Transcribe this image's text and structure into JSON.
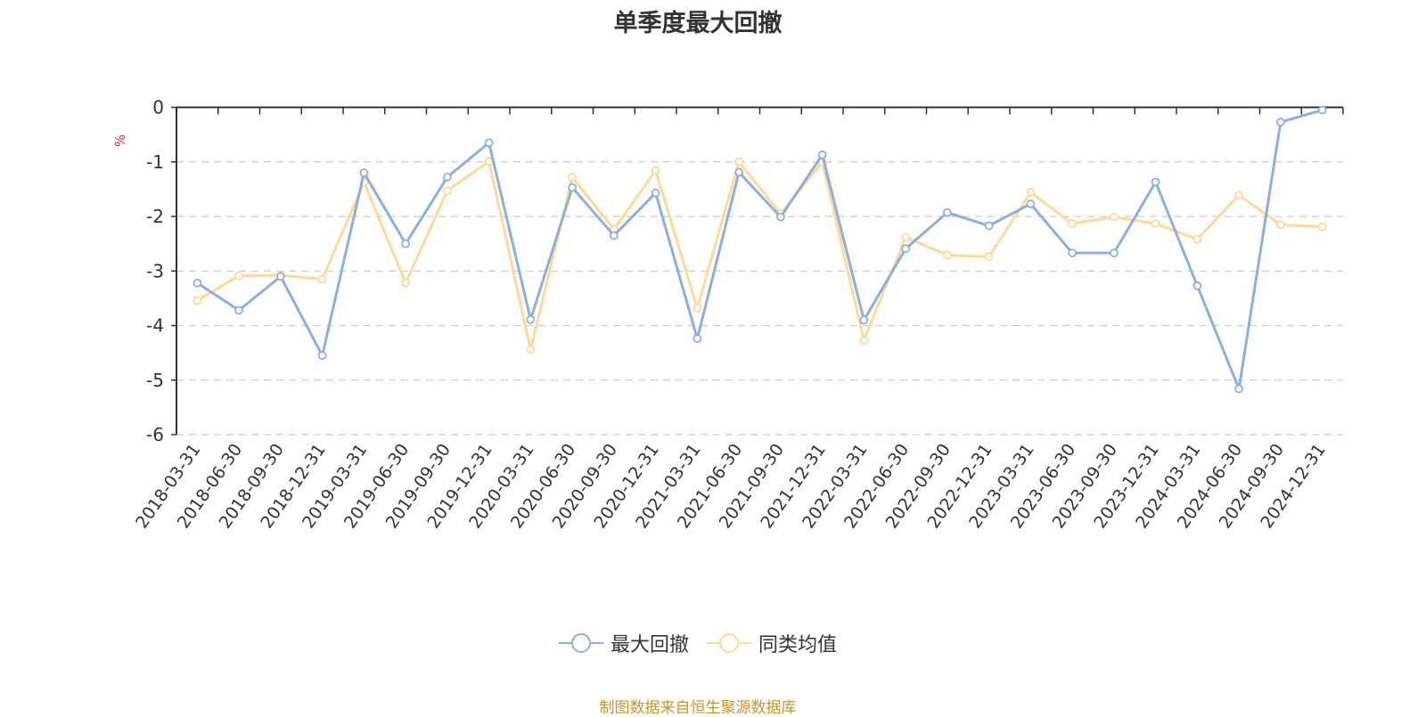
{
  "title": "单季度最大回撤",
  "y_unit": "%",
  "footer": "制图数据来自恒生聚源数据库",
  "colors": {
    "series1": "#8eaedd",
    "series2": "#fdd99a",
    "unit": "#e8232a",
    "grid": "#cccccc",
    "axis": "#333333",
    "footer": "#c8952c"
  },
  "legend": [
    {
      "label": "最大回撤",
      "color": "#8eaedd"
    },
    {
      "label": "同类均值",
      "color": "#fdd99a"
    }
  ],
  "chart_data": {
    "type": "line",
    "title": "单季度最大回撤",
    "xlabel": "",
    "ylabel": "%",
    "ylim": [
      -6,
      0
    ],
    "yticks": [
      0,
      -1,
      -2,
      -3,
      -4,
      -5,
      -6
    ],
    "grid": true,
    "legend_position": "bottom",
    "categories": [
      "2018-03-31",
      "2018-06-30",
      "2018-09-30",
      "2018-12-31",
      "2019-03-31",
      "2019-06-30",
      "2019-09-30",
      "2019-12-31",
      "2020-03-31",
      "2020-06-30",
      "2020-09-30",
      "2020-12-31",
      "2021-03-31",
      "2021-06-30",
      "2021-09-30",
      "2021-12-31",
      "2022-03-31",
      "2022-06-30",
      "2022-09-30",
      "2022-12-31",
      "2023-03-31",
      "2023-06-30",
      "2023-09-30",
      "2023-12-31",
      "2024-03-31",
      "2024-06-30",
      "2024-09-30",
      "2024-12-31"
    ],
    "series": [
      {
        "name": "最大回撤",
        "values": [
          -3.22,
          -3.72,
          -3.1,
          -4.55,
          -1.2,
          -2.5,
          -1.28,
          -0.65,
          -3.89,
          -1.47,
          -2.35,
          -1.57,
          -4.24,
          -1.19,
          -2.01,
          -0.87,
          -3.9,
          -2.59,
          -1.93,
          -2.17,
          -1.77,
          -2.67,
          -2.67,
          -1.37,
          -3.27,
          -5.16,
          -0.27,
          -0.05
        ]
      },
      {
        "name": "同类均值",
        "values": [
          -3.54,
          -3.09,
          -3.08,
          -3.15,
          -1.37,
          -3.22,
          -1.53,
          -0.99,
          -4.44,
          -1.28,
          -2.24,
          -1.16,
          -3.68,
          -1.0,
          -1.95,
          -1.0,
          -4.27,
          -2.38,
          -2.71,
          -2.74,
          -1.56,
          -2.13,
          -2.01,
          -2.13,
          -2.42,
          -1.61,
          -2.15,
          -2.19
        ]
      }
    ]
  }
}
